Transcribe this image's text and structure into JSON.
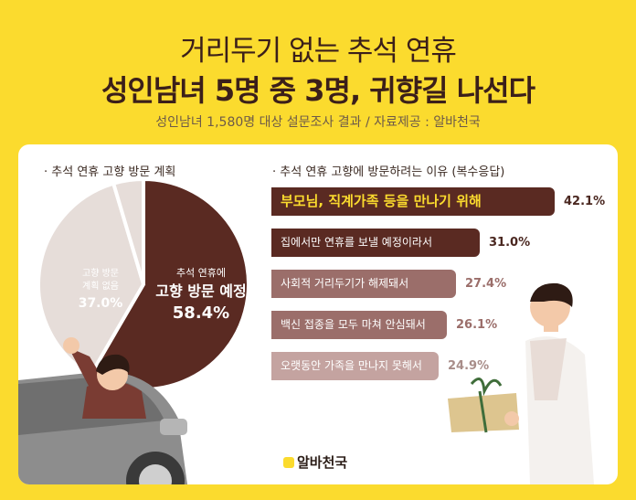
{
  "header": {
    "title_line1": "거리두기 없는 추석 연휴",
    "title_line2": "성인남녀 5명 중 3명, 귀향길 나선다",
    "subtitle": "성인남녀 1,580명 대상 설문조사 결과 / 자료제공 : 알바천국"
  },
  "colors": {
    "background": "#FBDB2E",
    "dark_brown": "#5a2a22",
    "light_pink": "#e6ddd9",
    "bar_mid": "#9b6e6a",
    "bar_light": "#c4a3a0"
  },
  "chart_data": [
    {
      "type": "pie",
      "title": "· 추석 연휴 고향 방문 계획",
      "slices": [
        {
          "name_line1": "추석 연휴에",
          "name_line2": "고향 방문 예정",
          "value": 58.4,
          "label": "58.4%"
        },
        {
          "name_line1": "고향 방문",
          "name_line2": "계획 없음",
          "value": 37.0,
          "label": "37.0%"
        },
        {
          "name_line1": "",
          "name_line2": "",
          "value": 4.6,
          "label": ""
        }
      ]
    },
    {
      "type": "bar",
      "title": "· 추석 연휴 고향에 방문하려는 이유 (복수응답)",
      "categories": [
        "부모님, 직계가족 등을 만나기 위해",
        "집에서만 연휴를 보낼 예정이라서",
        "사회적 거리두기가 해제돼서",
        "백신 접종을 모두 마쳐 안심돼서",
        "오랫동안 가족을 만나지 못해서"
      ],
      "values": [
        42.1,
        31.0,
        27.4,
        26.1,
        24.9
      ],
      "value_labels": [
        "42.1%",
        "31.0%",
        "27.4%",
        "26.1%",
        "24.9%"
      ],
      "xlim": [
        0,
        42.1
      ]
    }
  ],
  "logo": {
    "text": "알바천국"
  }
}
